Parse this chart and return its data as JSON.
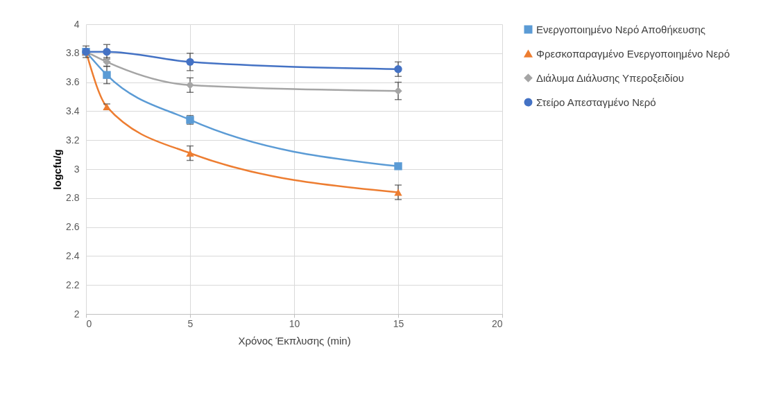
{
  "chart_data": {
    "type": "line",
    "xlabel": "Χρόνος Έκπλυσης (min)",
    "ylabel": "logcfu/g",
    "xlim": [
      0,
      20
    ],
    "xticks": [
      0,
      5,
      10,
      15,
      20
    ],
    "ylim": [
      2,
      4
    ],
    "yticks": [
      2,
      2.2,
      2.4,
      2.6,
      2.8,
      3,
      3.2,
      3.4,
      3.6,
      3.8,
      4
    ],
    "grid": true,
    "legend": "right",
    "series": [
      {
        "name": "Ενεργοποιημένο Νερό Αποθήκευσης",
        "color": "#5b9bd5",
        "marker": "square",
        "x": [
          0,
          1,
          5,
          15
        ],
        "values": [
          3.81,
          3.65,
          3.34,
          3.02
        ],
        "errors": [
          null,
          0.06,
          0.03,
          null
        ]
      },
      {
        "name": "Φρεσκοπαραγμένο Ενεργοποιημένο Νερό",
        "color": "#ed7d31",
        "marker": "triangle",
        "x": [
          0,
          1,
          5,
          15
        ],
        "values": [
          3.81,
          3.43,
          3.11,
          2.84
        ],
        "errors": [
          null,
          0.02,
          0.05,
          0.05
        ]
      },
      {
        "name": "Διάλυμα Διάλυσης Υπεροξειδίου",
        "color": "#a5a5a5",
        "marker": "diamond",
        "x": [
          0,
          1,
          5,
          15
        ],
        "values": [
          3.81,
          3.74,
          3.58,
          3.54
        ],
        "errors": [
          null,
          0.03,
          0.05,
          0.06
        ]
      },
      {
        "name": "Στείρο Απεσταγμένο Νερό",
        "color": "#4472c4",
        "marker": "circle",
        "x": [
          0,
          1,
          5,
          15
        ],
        "values": [
          3.81,
          3.81,
          3.74,
          3.69
        ],
        "errors": [
          0.04,
          0.05,
          0.06,
          0.05
        ]
      }
    ]
  }
}
